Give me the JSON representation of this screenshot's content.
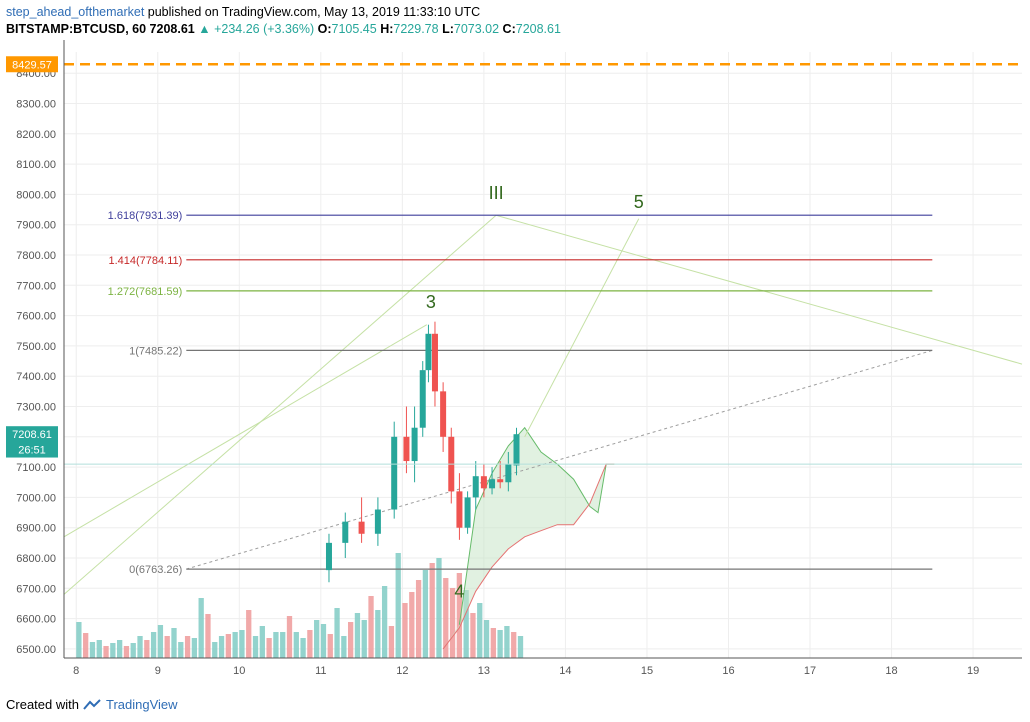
{
  "header": {
    "author": "step_ahead_ofthemarket",
    "published_text": "published on TradingView.com, May 13, 2019 11:33:10 UTC",
    "symbol": "BITSTAMP:BTCUSD, 60",
    "last": "7208.61",
    "change": "▲ +234.26 (+3.36%)",
    "o_label": "O:",
    "o": "7105.45",
    "h_label": "H:",
    "h": "7229.78",
    "l_label": "L:",
    "l": "7073.02",
    "c_label": "C:",
    "c": "7208.61"
  },
  "footer": {
    "created_with": "Created with",
    "brand": "TradingView"
  },
  "chart_data": {
    "type": "candlestick",
    "x_ticks": [
      "8",
      "9",
      "10",
      "11",
      "12",
      "13",
      "14",
      "15",
      "16",
      "17",
      "18",
      "19"
    ],
    "x_tick_values": [
      8,
      9,
      10,
      11,
      12,
      13,
      14,
      15,
      16,
      17,
      18,
      19
    ],
    "y_ticks": [
      6500,
      6600,
      6700,
      6800,
      6900,
      7000,
      7100,
      7200,
      7300,
      7400,
      7500,
      7600,
      7700,
      7800,
      7900,
      8000,
      8100,
      8200,
      8300,
      8400
    ],
    "y_tick_labels": [
      "6500.00",
      "6600.00",
      "6700.00",
      "6800.00",
      "6900.00",
      "7000.00",
      "7100.00",
      "7200.00",
      "7300.00",
      "7400.00",
      "7500.00",
      "7600.00",
      "7700.00",
      "7800.00",
      "7900.00",
      "8000.00",
      "8100.00",
      "8200.00",
      "8300.00",
      "8400.00"
    ],
    "x_range": [
      7.85,
      19.6
    ],
    "y_range": [
      6470,
      8470
    ],
    "price_tags": [
      {
        "label": "8429.57",
        "value": 8429.57,
        "color": "#ff9800"
      },
      {
        "label": "7208.61",
        "value": 7208.61,
        "color": "#26a69a"
      },
      {
        "label": "26:51",
        "value": 7158,
        "color": "#26a69a"
      }
    ],
    "horizontal_lines": [
      {
        "value": 8429.57,
        "color": "#ff9800",
        "style": "dashed"
      },
      {
        "value": 7110,
        "color": "#b2dfdb",
        "style": "solid"
      }
    ],
    "fib_levels": [
      {
        "label": "1.618(7931.39)",
        "value": 7931.39,
        "color": "#3f3f9c"
      },
      {
        "label": "1.414(7784.11)",
        "value": 7784.11,
        "color": "#c62828"
      },
      {
        "label": "1.272(7681.59)",
        "value": 7681.59,
        "color": "#7cb342"
      },
      {
        "label": "1(7485.22)",
        "value": 7485.22,
        "color": "#757575"
      },
      {
        "label": "0(6763.26)",
        "value": 6763.26,
        "color": "#757575"
      }
    ],
    "fib_x_range": [
      9.35,
      18.5
    ],
    "fib_base_line": [
      [
        9.35,
        6763.26
      ],
      [
        18.5,
        7485.22
      ]
    ],
    "wave_labels": [
      {
        "text": "III",
        "x": 13.15,
        "y": 7985
      },
      {
        "text": "5",
        "x": 14.9,
        "y": 7955
      },
      {
        "text": "3",
        "x": 12.35,
        "y": 7625
      },
      {
        "text": "4",
        "x": 12.7,
        "y": 6670
      }
    ],
    "wave_lines": [
      [
        [
          7.85,
          6680
        ],
        [
          13.15,
          7931
        ]
      ],
      [
        [
          13.15,
          7931
        ],
        [
          19.6,
          7440
        ]
      ],
      [
        [
          7.85,
          6870
        ],
        [
          12.3,
          7570
        ]
      ],
      [
        [
          13.5,
          7200
        ],
        [
          14.9,
          7920
        ]
      ]
    ],
    "cloud_top": [
      [
        12.7,
        6580
      ],
      [
        12.9,
        6960
      ],
      [
        13.1,
        7080
      ],
      [
        13.3,
        7170
      ],
      [
        13.5,
        7230
      ],
      [
        13.7,
        7150
      ],
      [
        13.9,
        7110
      ],
      [
        14.1,
        7060
      ],
      [
        14.3,
        6970
      ],
      [
        14.4,
        6950
      ],
      [
        14.5,
        7110
      ],
      [
        14.6,
        7110
      ]
    ],
    "cloud_bottom": [
      [
        12.5,
        6500
      ],
      [
        12.7,
        6570
      ],
      [
        12.9,
        6690
      ],
      [
        13.1,
        6770
      ],
      [
        13.3,
        6830
      ],
      [
        13.5,
        6870
      ],
      [
        13.7,
        6890
      ],
      [
        13.9,
        6910
      ],
      [
        14.1,
        6910
      ],
      [
        14.3,
        6980
      ],
      [
        14.5,
        7110
      ],
      [
        14.6,
        7110
      ]
    ],
    "volume": [
      36,
      25,
      16,
      18,
      12,
      15,
      18,
      12,
      15,
      22,
      18,
      26,
      33,
      22,
      30,
      16,
      22,
      20,
      60,
      44,
      16,
      22,
      24,
      26,
      28,
      48,
      22,
      32,
      20,
      26,
      26,
      42,
      26,
      20,
      28,
      38,
      34,
      24,
      50,
      22,
      36,
      45,
      38,
      62,
      48,
      72,
      32,
      105,
      55,
      66,
      78,
      88,
      95,
      100,
      80,
      70,
      85,
      68,
      45,
      55,
      38,
      30,
      28,
      32,
      26,
      22
    ],
    "candles": [
      {
        "x": 11.1,
        "o": 6760,
        "h": 6880,
        "l": 6720,
        "c": 6850
      },
      {
        "x": 11.3,
        "o": 6850,
        "h": 6950,
        "l": 6800,
        "c": 6920
      },
      {
        "x": 11.5,
        "o": 6920,
        "h": 7000,
        "l": 6850,
        "c": 6880
      },
      {
        "x": 11.7,
        "o": 6880,
        "h": 7000,
        "l": 6840,
        "c": 6960
      },
      {
        "x": 11.9,
        "o": 6960,
        "h": 7250,
        "l": 6930,
        "c": 7200
      },
      {
        "x": 12.05,
        "o": 7200,
        "h": 7300,
        "l": 7080,
        "c": 7120
      },
      {
        "x": 12.15,
        "o": 7120,
        "h": 7300,
        "l": 7050,
        "c": 7230
      },
      {
        "x": 12.25,
        "o": 7230,
        "h": 7450,
        "l": 7200,
        "c": 7420
      },
      {
        "x": 12.32,
        "o": 7420,
        "h": 7570,
        "l": 7380,
        "c": 7540
      },
      {
        "x": 12.4,
        "o": 7540,
        "h": 7580,
        "l": 7300,
        "c": 7350
      },
      {
        "x": 12.5,
        "o": 7350,
        "h": 7380,
        "l": 7150,
        "c": 7200
      },
      {
        "x": 12.6,
        "o": 7200,
        "h": 7230,
        "l": 6980,
        "c": 7020
      },
      {
        "x": 12.7,
        "o": 7020,
        "h": 7080,
        "l": 6860,
        "c": 6900
      },
      {
        "x": 12.8,
        "o": 6900,
        "h": 7020,
        "l": 6880,
        "c": 7000
      },
      {
        "x": 12.9,
        "o": 7000,
        "h": 7120,
        "l": 6960,
        "c": 7070
      },
      {
        "x": 13.0,
        "o": 7070,
        "h": 7110,
        "l": 7000,
        "c": 7030
      },
      {
        "x": 13.1,
        "o": 7030,
        "h": 7100,
        "l": 7010,
        "c": 7060
      },
      {
        "x": 13.2,
        "o": 7060,
        "h": 7120,
        "l": 7030,
        "c": 7050
      },
      {
        "x": 13.3,
        "o": 7050,
        "h": 7150,
        "l": 7020,
        "c": 7110
      },
      {
        "x": 13.4,
        "o": 7105.45,
        "h": 7229.78,
        "l": 7073.02,
        "c": 7208.61
      }
    ]
  }
}
